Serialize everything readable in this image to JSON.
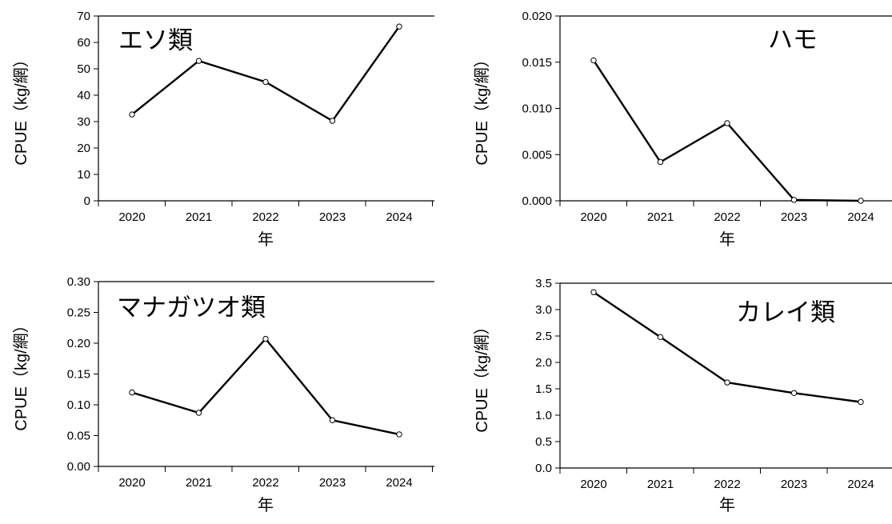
{
  "chart_data": [
    {
      "type": "line",
      "title": "エソ類",
      "xlabel": "年",
      "ylabel": "CPUE（kg/網）",
      "categories": [
        "2020",
        "2021",
        "2022",
        "2023",
        "2024"
      ],
      "values": [
        32.7,
        53.0,
        45.0,
        30.3,
        66.0
      ],
      "ylim": [
        0,
        70
      ],
      "yticks": [
        "0",
        "10",
        "20",
        "30",
        "40",
        "50",
        "60",
        "70"
      ],
      "grid": false
    },
    {
      "type": "line",
      "title": "ハモ",
      "xlabel": "年",
      "ylabel": "CPUE（kg/網）",
      "categories": [
        "2020",
        "2021",
        "2022",
        "2023",
        "2024"
      ],
      "values": [
        0.0152,
        0.0042,
        0.0084,
        0.0001,
        0.0
      ],
      "ylim": [
        0,
        0.02
      ],
      "yticks": [
        "0.000",
        "0.005",
        "0.010",
        "0.015",
        "0.020"
      ],
      "grid": false
    },
    {
      "type": "line",
      "title": "マナガツオ類",
      "xlabel": "年",
      "ylabel": "CPUE（kg/網）",
      "categories": [
        "2020",
        "2021",
        "2022",
        "2023",
        "2024"
      ],
      "values": [
        0.12,
        0.087,
        0.207,
        0.075,
        0.052
      ],
      "ylim": [
        0,
        0.3
      ],
      "yticks": [
        "0.00",
        "0.05",
        "0.10",
        "0.15",
        "0.20",
        "0.25",
        "0.30"
      ],
      "grid": false
    },
    {
      "type": "line",
      "title": "カレイ類",
      "xlabel": "年",
      "ylabel": "CPUE（kg/網）",
      "categories": [
        "2020",
        "2021",
        "2022",
        "2023",
        "2024"
      ],
      "values": [
        3.33,
        2.48,
        1.62,
        1.42,
        1.25
      ],
      "ylim": [
        0,
        3.5
      ],
      "yticks": [
        "0.0",
        "0.5",
        "1.0",
        "1.5",
        "2.0",
        "2.5",
        "3.0",
        "3.5"
      ],
      "grid": false
    }
  ]
}
